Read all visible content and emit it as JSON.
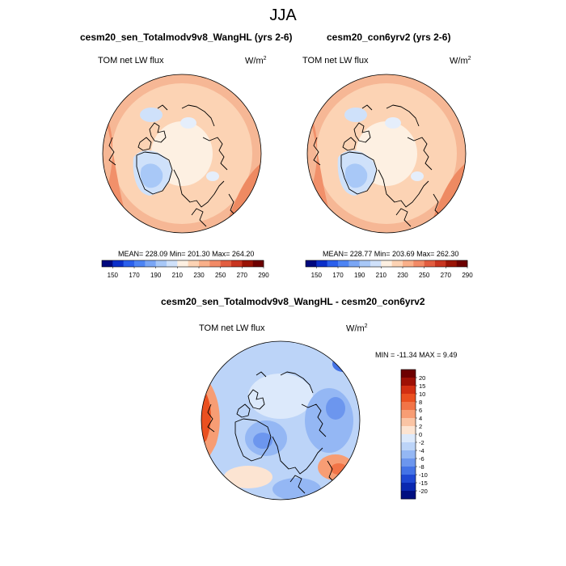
{
  "figure": {
    "season": "JJA"
  },
  "panels": [
    {
      "title": "cesm20_sen_Totalmodv9v8_WangHL (yrs 2-6)",
      "variable": "TOM net LW flux",
      "units_base": "W/m",
      "units_exp": "2",
      "stats": "MEAN= 228.09  Min= 201.30  Max= 264.20"
    },
    {
      "title": "cesm20_con6yrv2 (yrs 2-6)",
      "variable": "TOM net LW flux",
      "units_base": "W/m",
      "units_exp": "2",
      "stats": "MEAN= 228.77  Min= 203.69  Max= 262.30"
    },
    {
      "title": "cesm20_sen_Totalmodv9v8_WangHL - cesm20_con6yrv2",
      "variable": "TOM net LW flux",
      "units_base": "W/m",
      "units_exp": "2",
      "stats": "MIN = -11.34 MAX =   9.49"
    }
  ],
  "colorbar_top": {
    "labels": [
      "150",
      "170",
      "190",
      "210",
      "230",
      "250",
      "270",
      "290"
    ],
    "colors": [
      "#00087e",
      "#0b2fc9",
      "#2a5fec",
      "#4d84f4",
      "#7aa6f5",
      "#a8c8f7",
      "#cfe1fa",
      "#fdf0e2",
      "#fcd3b4",
      "#f9b08a",
      "#f28a66",
      "#e25d40",
      "#c83520",
      "#9a1406",
      "#6d0000"
    ]
  },
  "colorbar_diff": {
    "labels": [
      "20",
      "15",
      "10",
      "8",
      "6",
      "4",
      "2",
      "0",
      "-2",
      "-4",
      "-6",
      "-8",
      "-10",
      "-15",
      "-20"
    ],
    "colors": [
      "#6d0000",
      "#9e1005",
      "#d22f12",
      "#ea5020",
      "#f27447",
      "#f79d74",
      "#fac4a4",
      "#fce4d2",
      "#dce9fb",
      "#bcd4f8",
      "#94b7f4",
      "#6c96ee",
      "#4473e6",
      "#1f48d3",
      "#0a28b0",
      "#000f80"
    ]
  }
}
